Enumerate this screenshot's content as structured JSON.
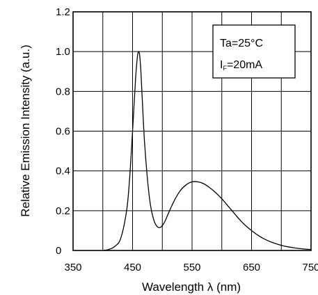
{
  "chart_data": {
    "type": "line",
    "title": "",
    "xlabel": "Wavelength λ (nm)",
    "ylabel": "Relative Emission Intensity (a.u.)",
    "xlim": [
      350,
      750
    ],
    "ylim": [
      0,
      1.2
    ],
    "grid": true,
    "x_ticks": [
      "350",
      "450",
      "550",
      "650",
      "750"
    ],
    "x_tick_values": [
      350,
      450,
      550,
      650,
      750
    ],
    "y_ticks": [
      "0",
      "0.2",
      "0.4",
      "0.6",
      "0.8",
      "1.0",
      "1.2"
    ],
    "y_tick_values": [
      0,
      0.2,
      0.4,
      0.6,
      0.8,
      1.0,
      1.2
    ],
    "legend_placement": "top-right",
    "annotation": {
      "line1": "Ta=25°C",
      "line2_main": "I",
      "line2_sub": "F",
      "line2_rest": "=20mA"
    },
    "series": [
      {
        "x": [
          400,
          410,
          420,
          430,
          440,
          445,
          450,
          455,
          458,
          460,
          462,
          464,
          466,
          470,
          475,
          480,
          485,
          490,
          495,
          500,
          505,
          510,
          520,
          530,
          540,
          550,
          560,
          570,
          580,
          590,
          600,
          610,
          620,
          630,
          640,
          650,
          660,
          670,
          680,
          690,
          700,
          710,
          720,
          730,
          740,
          750
        ],
        "y": [
          0.0,
          0.005,
          0.02,
          0.06,
          0.2,
          0.36,
          0.6,
          0.86,
          0.97,
          1.0,
          0.98,
          0.9,
          0.78,
          0.55,
          0.36,
          0.23,
          0.16,
          0.125,
          0.115,
          0.125,
          0.15,
          0.185,
          0.25,
          0.3,
          0.33,
          0.345,
          0.345,
          0.335,
          0.315,
          0.29,
          0.26,
          0.225,
          0.19,
          0.155,
          0.125,
          0.1,
          0.078,
          0.06,
          0.046,
          0.035,
          0.026,
          0.019,
          0.014,
          0.01,
          0.007,
          0.005
        ]
      }
    ]
  }
}
